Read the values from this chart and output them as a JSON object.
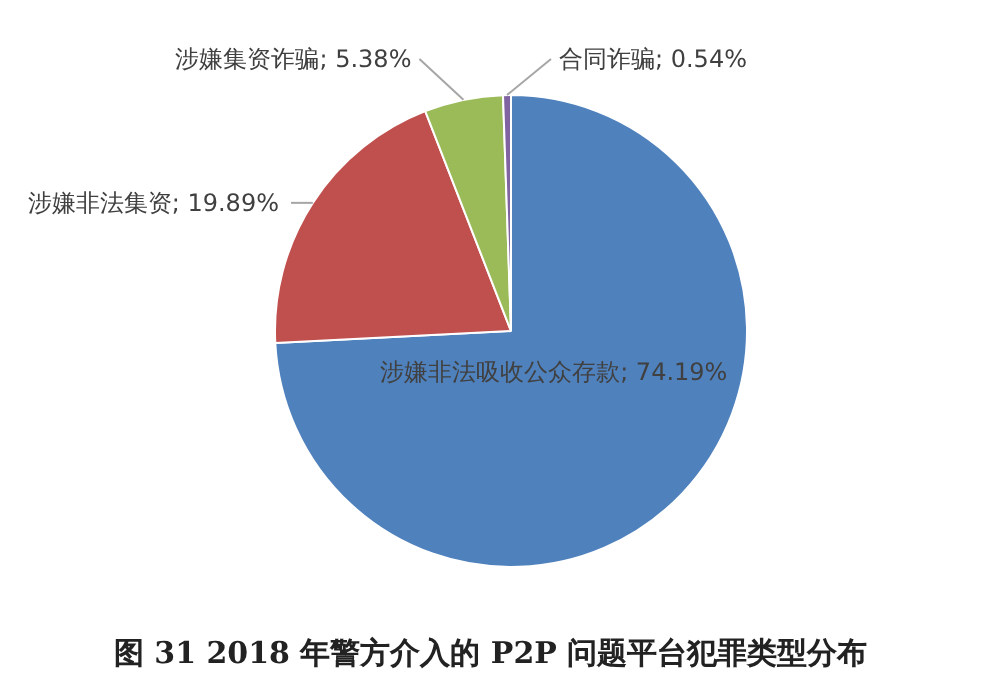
{
  "chart_data": {
    "type": "pie",
    "title": "图 31   2018 年警方介入的 P2P 问题平台犯罪类型分布",
    "categories": [
      "涉嫌非法吸收公众存款",
      "涉嫌非法集资",
      "涉嫌集资诈骗",
      "合同诈骗"
    ],
    "values": [
      74.19,
      19.89,
      5.38,
      0.54
    ],
    "colors": [
      "#4f81bd",
      "#c0504d",
      "#9bbb59",
      "#8064a2"
    ],
    "value_labels": [
      "74.19%",
      "19.89%",
      "5.38%",
      "0.54%"
    ]
  }
}
